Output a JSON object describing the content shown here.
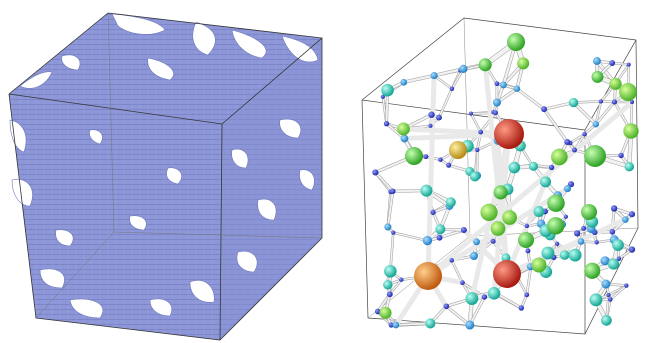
{
  "figure": {
    "panels": [
      {
        "id": "left",
        "kind": "porous-voxel-volume",
        "fill": "#8d97d8",
        "edge": "#6f78bd"
      },
      {
        "id": "right",
        "kind": "pore-network-model",
        "throat_color": "#e8e8e8"
      }
    ],
    "node_colors": [
      "#2a34c8",
      "#3a9be0",
      "#36c2b8",
      "#52c879",
      "#5fd64a",
      "#d43221",
      "#e07a1b",
      "#d8b02a"
    ]
  }
}
